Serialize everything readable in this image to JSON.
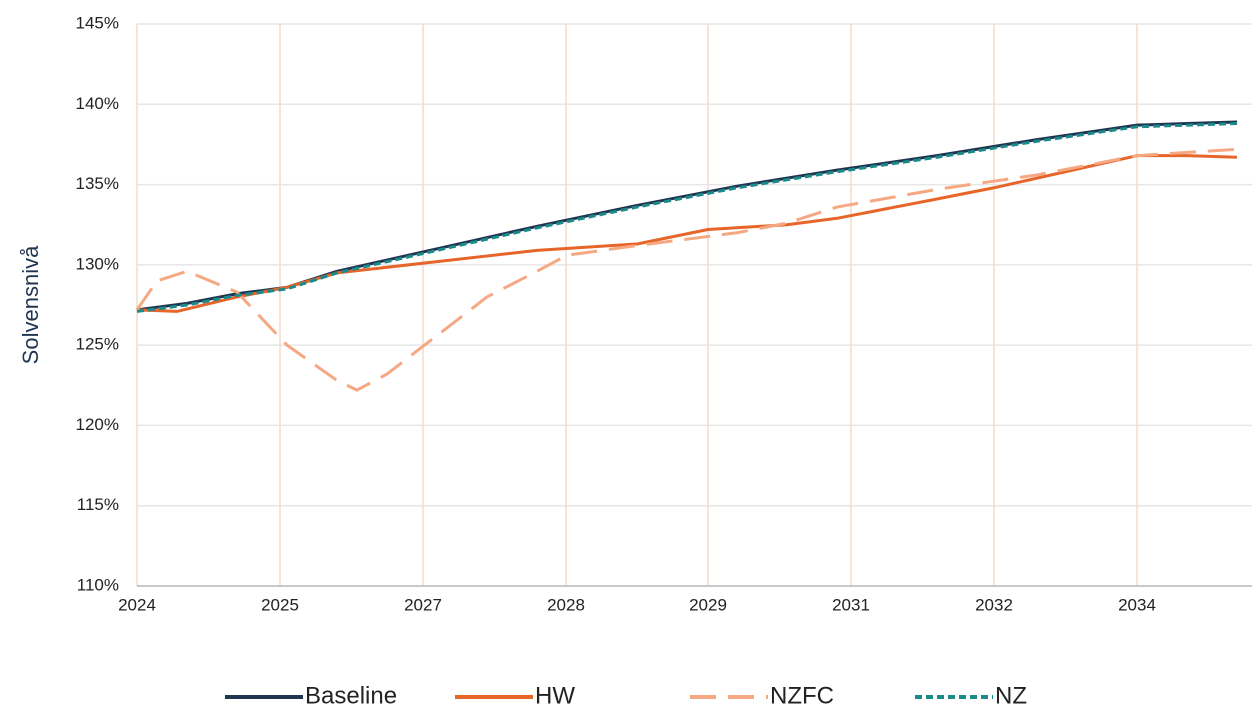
{
  "chart_data": {
    "type": "line",
    "y_label": "Solvensnivå",
    "xlim": [
      2024,
      2035.15
    ],
    "xticks": [
      {
        "value": 2024,
        "label": "2024"
      },
      {
        "value": 2025.43,
        "label": "2025"
      },
      {
        "value": 2026.86,
        "label": "2027"
      },
      {
        "value": 2028.29,
        "label": "2028"
      },
      {
        "value": 2029.71,
        "label": "2029"
      },
      {
        "value": 2031.14,
        "label": "2031"
      },
      {
        "value": 2032.57,
        "label": "2032"
      },
      {
        "value": 2034,
        "label": "2034"
      }
    ],
    "ylim": [
      110,
      145
    ],
    "yticks": [
      {
        "value": 110,
        "label": "110%"
      },
      {
        "value": 115,
        "label": "115%"
      },
      {
        "value": 120,
        "label": "120%"
      },
      {
        "value": 125,
        "label": "125%"
      },
      {
        "value": 130,
        "label": "130%"
      },
      {
        "value": 135,
        "label": "135%"
      },
      {
        "value": 140,
        "label": "140%"
      },
      {
        "value": 145,
        "label": "145%"
      }
    ],
    "grid": true,
    "legend": "bottom",
    "series": [
      {
        "name": "Baseline",
        "color": "#1f3550",
        "dash": "solid",
        "x": [
          2024,
          2024.5,
          2025,
          2025.5,
          2026,
          2026.5,
          2027,
          2028,
          2029,
          2030,
          2031,
          2032,
          2033,
          2034,
          2034.5,
          2035
        ],
        "values": [
          127.2,
          127.6,
          128.2,
          128.6,
          129.6,
          130.3,
          131.0,
          132.4,
          133.7,
          134.9,
          135.9,
          136.8,
          137.8,
          138.7,
          138.8,
          138.9
        ]
      },
      {
        "name": "HW",
        "color": "#e8652a",
        "dash": "solid",
        "x": [
          2024,
          2024.4,
          2025,
          2025.5,
          2026,
          2027,
          2028,
          2029,
          2029.71,
          2030.5,
          2031,
          2032,
          2032.57,
          2033,
          2034,
          2034.5,
          2035
        ],
        "values": [
          127.2,
          127.1,
          128.0,
          128.6,
          129.5,
          130.2,
          130.9,
          131.3,
          132.2,
          132.5,
          132.9,
          134.1,
          134.8,
          135.4,
          136.8,
          136.8,
          136.7
        ]
      },
      {
        "name": "NZFC",
        "color": "#f5a882",
        "dash": "long",
        "x": [
          2024,
          2024.2,
          2024.5,
          2025,
          2025.5,
          2026,
          2026.2,
          2026.5,
          2027,
          2027.5,
          2028,
          2028.3,
          2029,
          2030,
          2030.5,
          2031,
          2032,
          2033,
          2034,
          2035
        ],
        "values": [
          127.2,
          129.0,
          129.6,
          128.3,
          125.0,
          122.8,
          122.2,
          123.2,
          125.6,
          128.0,
          129.6,
          130.6,
          131.2,
          132.0,
          132.6,
          133.6,
          134.7,
          135.6,
          136.8,
          137.2
        ]
      },
      {
        "name": "NZ",
        "color": "#1a8a8a",
        "dash": "short",
        "x": [
          2024,
          2024.5,
          2025,
          2025.5,
          2026,
          2026.5,
          2027,
          2028,
          2029,
          2030,
          2031,
          2032,
          2033,
          2034,
          2034.5,
          2035
        ],
        "values": [
          127.1,
          127.5,
          128.1,
          128.5,
          129.5,
          130.2,
          130.9,
          132.3,
          133.6,
          134.8,
          135.8,
          136.7,
          137.7,
          138.6,
          138.7,
          138.8
        ]
      }
    ]
  }
}
